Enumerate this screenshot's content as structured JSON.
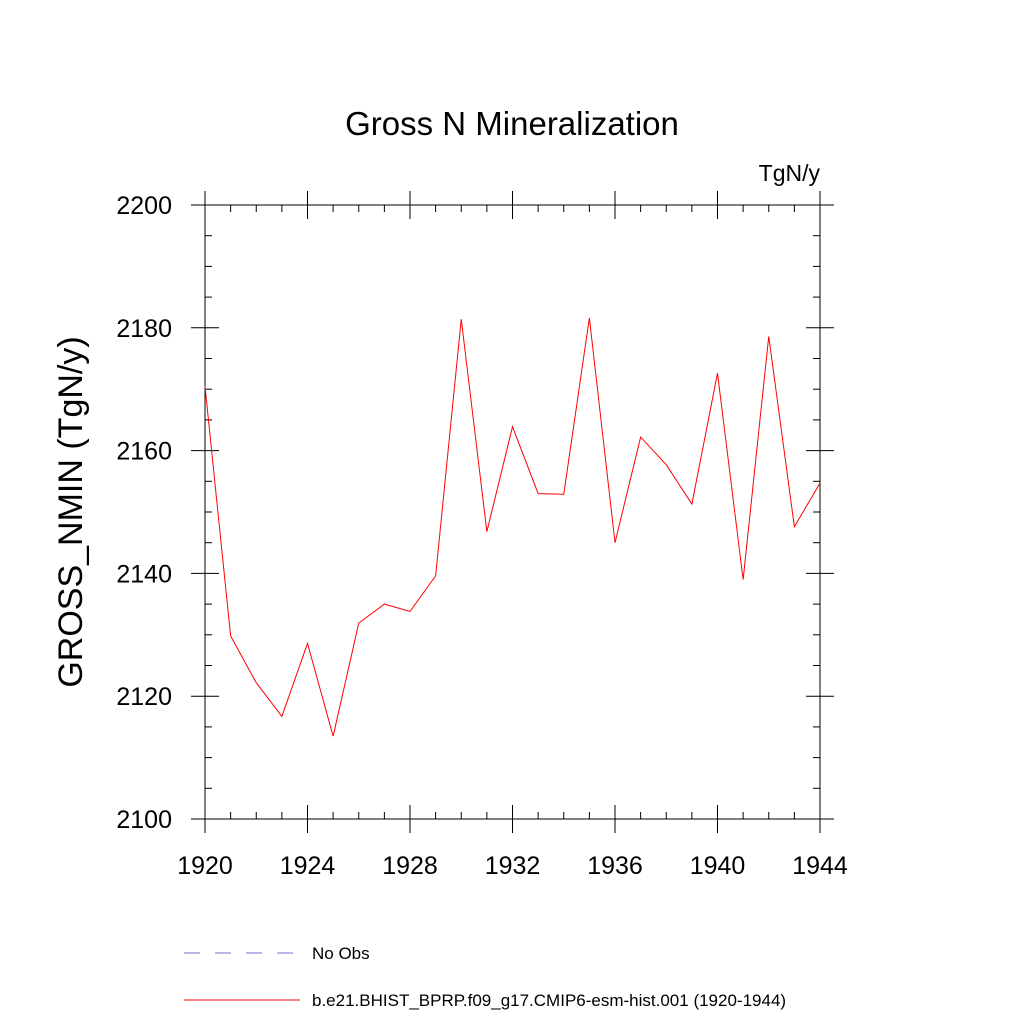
{
  "chart_data": {
    "type": "line",
    "title": "Gross N Mineralization",
    "units_label": "TgN/y",
    "ylabel": "GROSS_NMIN  (TgN/y)",
    "xlabel": "",
    "xlim": [
      1920,
      1944
    ],
    "ylim": [
      2100,
      2200
    ],
    "x_ticks": [
      1920,
      1924,
      1928,
      1932,
      1936,
      1940,
      1944
    ],
    "y_ticks": [
      2100,
      2120,
      2140,
      2160,
      2180,
      2200
    ],
    "x_tick_labels": [
      "1920",
      "1924",
      "1928",
      "1932",
      "1936",
      "1940",
      "1944"
    ],
    "y_tick_labels": [
      "2100",
      "2120",
      "2140",
      "2160",
      "2180",
      "2200"
    ],
    "grid": false,
    "legend_placement": "bottom",
    "legend": [
      {
        "label": "No Obs",
        "style": "dashed",
        "color": "#7b6fd0"
      },
      {
        "label": "b.e21.BHIST_BPRP.f09_g17.CMIP6-esm-hist.001 (1920-1944)",
        "style": "solid",
        "color": "#ff0000"
      }
    ],
    "series": [
      {
        "name": "b.e21.BHIST_BPRP.f09_g17.CMIP6-esm-hist.001 (1920-1944)",
        "color": "#ff0000",
        "x": [
          1920,
          1921,
          1922,
          1923,
          1924,
          1925,
          1926,
          1927,
          1928,
          1929,
          1930,
          1931,
          1932,
          1933,
          1934,
          1935,
          1936,
          1937,
          1938,
          1939,
          1940,
          1941,
          1942,
          1943,
          1944
        ],
        "values": [
          2170.5,
          2129.8,
          2122.2,
          2116.7,
          2128.6,
          2113.5,
          2131.9,
          2135.0,
          2133.8,
          2139.6,
          2181.4,
          2146.8,
          2163.9,
          2153.0,
          2152.9,
          2181.6,
          2145.0,
          2162.2,
          2157.7,
          2151.3,
          2172.6,
          2139.0,
          2178.6,
          2147.6,
          2154.7
        ]
      }
    ]
  }
}
